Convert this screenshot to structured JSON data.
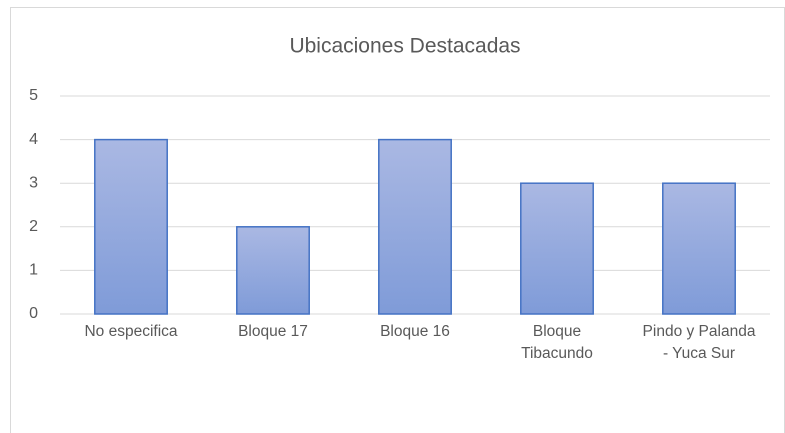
{
  "chart_data": {
    "type": "bar",
    "title": "Ubicaciones Destacadas",
    "categories": [
      "No especifica",
      "Bloque 17",
      "Bloque 16",
      "Bloque Tibacundo",
      "Pindo y Palanda - Yuca Sur"
    ],
    "values": [
      4,
      2,
      4,
      3,
      3
    ],
    "color": "#4472c4",
    "ylim": [
      0,
      5
    ],
    "yticks": [
      0,
      1,
      2,
      3,
      4,
      5
    ],
    "grid": true
  }
}
